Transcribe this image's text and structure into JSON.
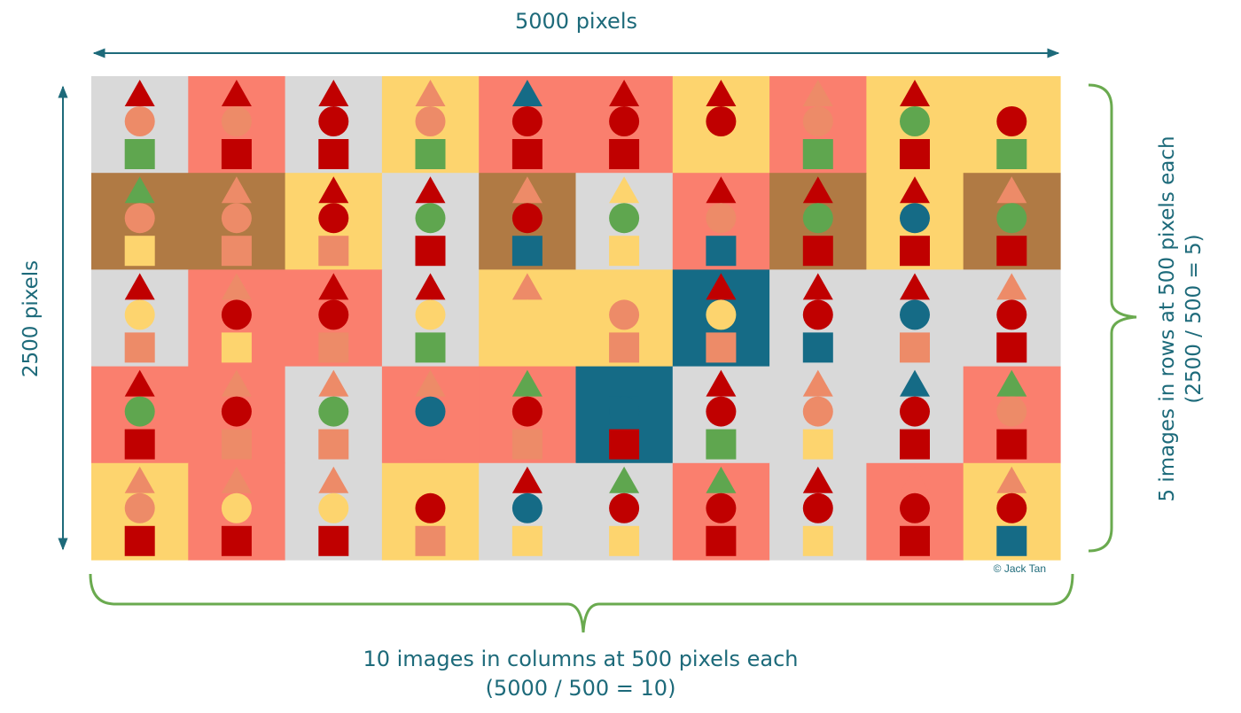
{
  "labels": {
    "width_label": "5000 pixels",
    "height_label": "2500 pixels",
    "rows_label_line1": "5 images in rows at 500 pixels each",
    "rows_label_line2": "(2500 / 500 = 5)",
    "columns_label_line1": "10 images in columns at 500 pixels each",
    "columns_label_line2": "(5000 / 500 = 10)",
    "copyright": "© Jack Tan"
  },
  "colors": {
    "G": "#d9d9d9",
    "S": "#fa7f6e",
    "Y": "#fdd46e",
    "B": "#b07a44",
    "T": "#156b86",
    "R": "#c00000",
    "O": "#ed8b68",
    "E": "#5fa64f",
    "annotation_teal": "#1d6a7a",
    "bracket_green": "#6aaa4f"
  },
  "grid": {
    "rows": 5,
    "columns": 10,
    "cells": [
      [
        {
          "bg": "G",
          "tri": "R",
          "cir": "O",
          "sq": "E"
        },
        {
          "bg": "S",
          "tri": "R",
          "cir": "O",
          "sq": "R"
        },
        {
          "bg": "G",
          "tri": "R",
          "cir": "R",
          "sq": "R"
        },
        {
          "bg": "Y",
          "tri": "O",
          "cir": "O",
          "sq": "E"
        },
        {
          "bg": "S",
          "tri": "T",
          "cir": "R",
          "sq": "R"
        },
        {
          "bg": "S",
          "tri": "R",
          "cir": "R",
          "sq": "R"
        },
        {
          "bg": "Y",
          "tri": "R",
          "cir": "R",
          "sq": "Y"
        },
        {
          "bg": "S",
          "tri": "O",
          "cir": "O",
          "sq": "E"
        },
        {
          "bg": "Y",
          "tri": "R",
          "cir": "E",
          "sq": "R"
        },
        {
          "bg": "Y",
          "tri": "Y",
          "cir": "R",
          "sq": "E"
        }
      ],
      [
        {
          "bg": "B",
          "tri": "E",
          "cir": "O",
          "sq": "Y"
        },
        {
          "bg": "B",
          "tri": "O",
          "cir": "O",
          "sq": "O"
        },
        {
          "bg": "Y",
          "tri": "R",
          "cir": "R",
          "sq": "O"
        },
        {
          "bg": "G",
          "tri": "R",
          "cir": "E",
          "sq": "R"
        },
        {
          "bg": "B",
          "tri": "O",
          "cir": "R",
          "sq": "T"
        },
        {
          "bg": "G",
          "tri": "Y",
          "cir": "E",
          "sq": "Y"
        },
        {
          "bg": "S",
          "tri": "R",
          "cir": "O",
          "sq": "T"
        },
        {
          "bg": "B",
          "tri": "R",
          "cir": "E",
          "sq": "R"
        },
        {
          "bg": "Y",
          "tri": "R",
          "cir": "T",
          "sq": "R"
        },
        {
          "bg": "B",
          "tri": "O",
          "cir": "E",
          "sq": "R"
        }
      ],
      [
        {
          "bg": "G",
          "tri": "R",
          "cir": "Y",
          "sq": "O"
        },
        {
          "bg": "S",
          "tri": "O",
          "cir": "R",
          "sq": "Y"
        },
        {
          "bg": "S",
          "tri": "R",
          "cir": "R",
          "sq": "O"
        },
        {
          "bg": "G",
          "tri": "R",
          "cir": "Y",
          "sq": "E"
        },
        {
          "bg": "Y",
          "tri": "O",
          "cir": "Y",
          "sq": "Y"
        },
        {
          "bg": "Y",
          "tri": "Y",
          "cir": "O",
          "sq": "O"
        },
        {
          "bg": "T",
          "tri": "R",
          "cir": "Y",
          "sq": "O"
        },
        {
          "bg": "G",
          "tri": "R",
          "cir": "R",
          "sq": "T"
        },
        {
          "bg": "G",
          "tri": "R",
          "cir": "T",
          "sq": "O"
        },
        {
          "bg": "G",
          "tri": "O",
          "cir": "R",
          "sq": "R"
        }
      ],
      [
        {
          "bg": "S",
          "tri": "R",
          "cir": "E",
          "sq": "R"
        },
        {
          "bg": "S",
          "tri": "O",
          "cir": "R",
          "sq": "O"
        },
        {
          "bg": "G",
          "tri": "O",
          "cir": "E",
          "sq": "O"
        },
        {
          "bg": "S",
          "tri": "O",
          "cir": "T",
          "sq": "S"
        },
        {
          "bg": "S",
          "tri": "E",
          "cir": "R",
          "sq": "O"
        },
        {
          "bg": "T",
          "tri": "T",
          "cir": "T",
          "sq": "R"
        },
        {
          "bg": "G",
          "tri": "R",
          "cir": "R",
          "sq": "E"
        },
        {
          "bg": "G",
          "tri": "O",
          "cir": "O",
          "sq": "Y"
        },
        {
          "bg": "G",
          "tri": "T",
          "cir": "R",
          "sq": "R"
        },
        {
          "bg": "S",
          "tri": "E",
          "cir": "O",
          "sq": "R"
        }
      ],
      [
        {
          "bg": "Y",
          "tri": "O",
          "cir": "O",
          "sq": "R"
        },
        {
          "bg": "S",
          "tri": "O",
          "cir": "Y",
          "sq": "R"
        },
        {
          "bg": "G",
          "tri": "O",
          "cir": "Y",
          "sq": "R"
        },
        {
          "bg": "Y",
          "tri": "Y",
          "cir": "R",
          "sq": "O"
        },
        {
          "bg": "G",
          "tri": "R",
          "cir": "T",
          "sq": "Y"
        },
        {
          "bg": "G",
          "tri": "E",
          "cir": "R",
          "sq": "Y"
        },
        {
          "bg": "S",
          "tri": "E",
          "cir": "R",
          "sq": "R"
        },
        {
          "bg": "G",
          "tri": "R",
          "cir": "R",
          "sq": "Y"
        },
        {
          "bg": "S",
          "tri": "S",
          "cir": "R",
          "sq": "R"
        },
        {
          "bg": "Y",
          "tri": "O",
          "cir": "R",
          "sq": "T"
        }
      ]
    ]
  }
}
